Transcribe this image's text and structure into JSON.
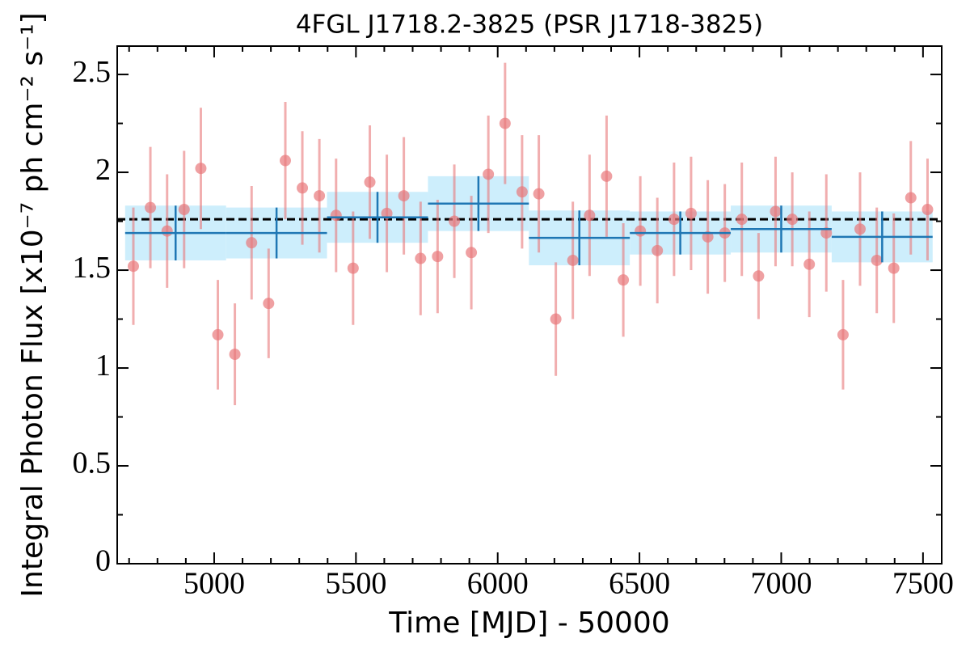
{
  "chart_data": {
    "type": "scatter",
    "title": "4FGL J1718.2-3825 (PSR J1718-3825)",
    "xlabel": "Time [MJD] - 50000",
    "ylabel": "Integral Photon Flux [x10⁻⁷ ph cm⁻² s⁻¹]",
    "xlim": [
      4658,
      7566
    ],
    "ylim": [
      0,
      2.645
    ],
    "xticks": [
      5000,
      5500,
      6000,
      6500,
      7000,
      7500
    ],
    "yticks": [
      0,
      0.5,
      1,
      1.5,
      2,
      2.5
    ],
    "minor_xticks": [
      4700,
      4800,
      4900,
      5100,
      5200,
      5300,
      5400,
      5600,
      5700,
      5800,
      5900,
      6100,
      6200,
      6300,
      6400,
      6600,
      6700,
      6800,
      6900,
      7100,
      7200,
      7300,
      7400
    ],
    "minor_yticks": [
      0.25,
      0.75,
      1.25,
      1.75,
      2.25
    ],
    "points": {
      "color": "#e8787a",
      "x": [
        4715,
        4775,
        4834,
        4894,
        4953,
        5013,
        5073,
        5132,
        5192,
        5251,
        5311,
        5371,
        5430,
        5490,
        5549,
        5609,
        5669,
        5728,
        5788,
        5847,
        5907,
        5967,
        6026,
        6086,
        6145,
        6205,
        6265,
        6324,
        6384,
        6443,
        6503,
        6563,
        6622,
        6682,
        6741,
        6801,
        6861,
        6920,
        6980,
        7039,
        7099,
        7159,
        7218,
        7278,
        7337,
        7397,
        7457,
        7516
      ],
      "values": [
        1.52,
        1.82,
        1.7,
        1.81,
        2.02,
        1.17,
        1.07,
        1.64,
        1.33,
        2.06,
        1.92,
        1.88,
        1.78,
        1.51,
        1.95,
        1.79,
        1.88,
        1.56,
        1.57,
        1.75,
        1.59,
        1.99,
        2.25,
        1.9,
        1.89,
        1.25,
        1.55,
        1.78,
        1.98,
        1.45,
        1.7,
        1.6,
        1.76,
        1.79,
        1.67,
        1.69,
        1.76,
        1.47,
        1.8,
        1.76,
        1.53,
        1.69,
        1.17,
        1.71,
        1.55,
        1.51,
        1.87,
        1.81
      ],
      "errors": [
        0.3,
        0.31,
        0.29,
        0.3,
        0.31,
        0.28,
        0.26,
        0.29,
        0.28,
        0.3,
        0.29,
        0.29,
        0.29,
        0.29,
        0.29,
        0.3,
        0.3,
        0.29,
        0.29,
        0.29,
        0.29,
        0.3,
        0.31,
        0.29,
        0.3,
        0.29,
        0.3,
        0.31,
        0.31,
        0.29,
        0.28,
        0.27,
        0.29,
        0.29,
        0.29,
        0.25,
        0.29,
        0.22,
        0.28,
        0.24,
        0.27,
        0.3,
        0.28,
        0.29,
        0.27,
        0.28,
        0.29,
        0.26
      ]
    },
    "bins": {
      "color": "#1f77b4",
      "band_color": "#cdeefc",
      "edges": [
        4686,
        5042,
        5398,
        5754,
        6110,
        6466,
        6822,
        7178,
        7534
      ],
      "values": [
        1.69,
        1.69,
        1.77,
        1.84,
        1.665,
        1.69,
        1.71,
        1.67
      ],
      "errors": [
        0.14,
        0.13,
        0.13,
        0.14,
        0.14,
        0.11,
        0.12,
        0.13
      ]
    },
    "mean": 1.76
  }
}
